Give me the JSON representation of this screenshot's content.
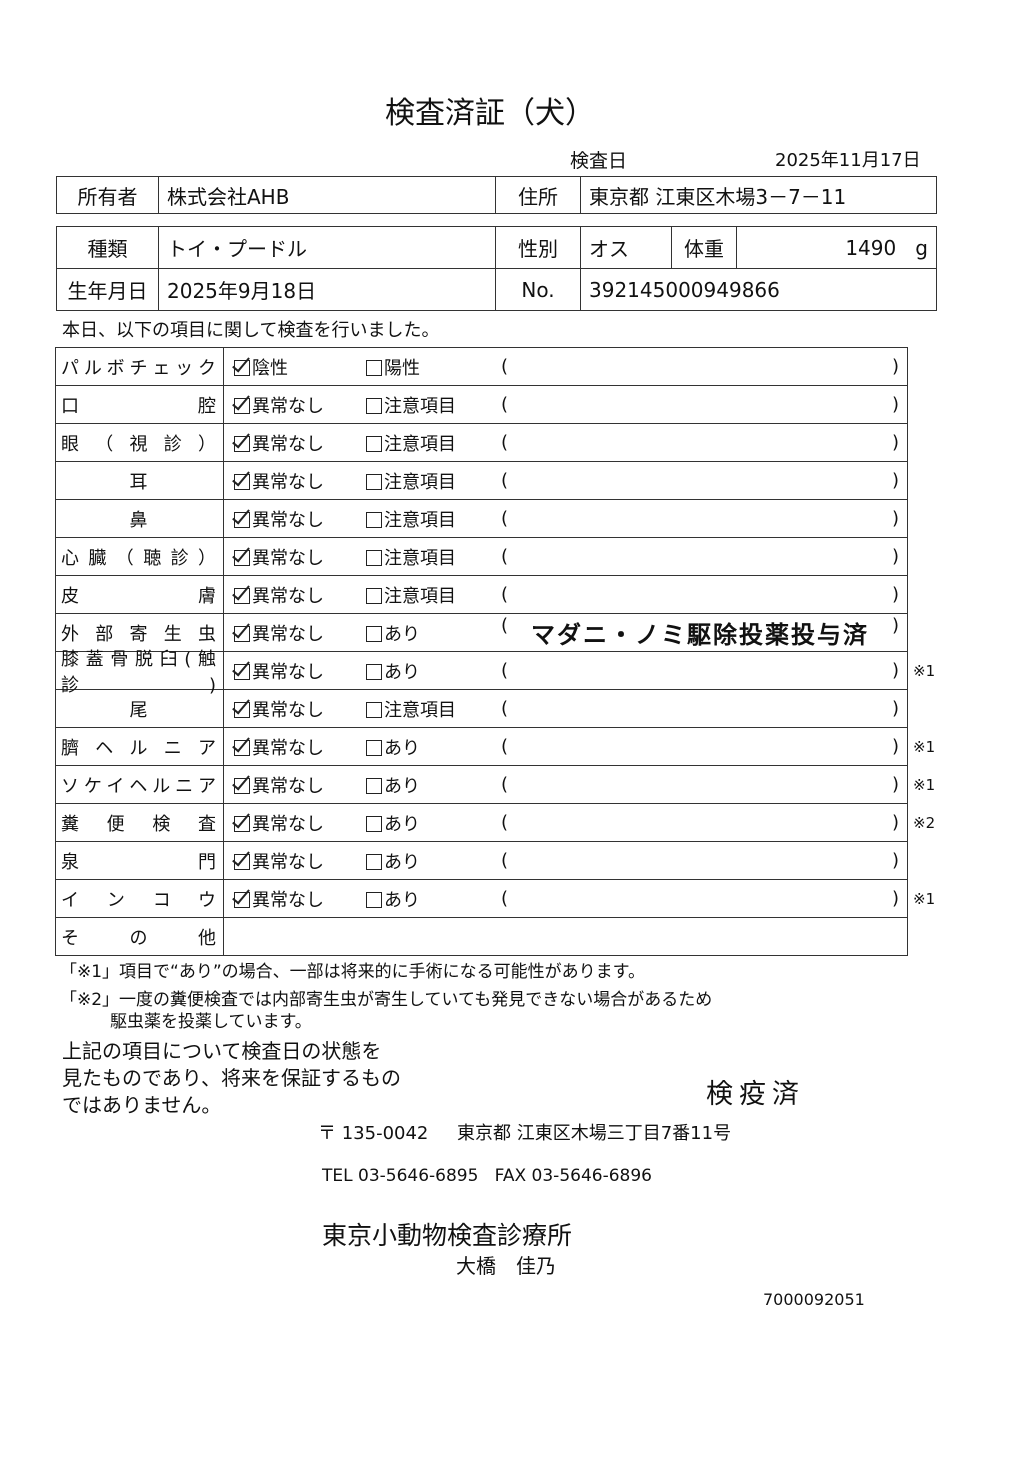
{
  "title": "検査済証（犬）",
  "exam_date_label": "検査日",
  "exam_date": "2025年11月17日",
  "owner": {
    "label": "所有者",
    "value": "株式会社AHB",
    "address_label": "住所",
    "address": "東京都 江東区木場3－7－11"
  },
  "pet": {
    "breed_label": "種類",
    "breed": "トイ・プードル",
    "sex_label": "性別",
    "sex": "オス",
    "weight_label": "体重",
    "weight": "1490",
    "weight_unit": "g",
    "dob_label": "生年月日",
    "dob": "2025年9月18日",
    "no_label": "No.",
    "no": "392145000949866"
  },
  "intro": "本日、以下の項目に関して検査を行いました。",
  "checks": [
    {
      "label": "パルボチェック",
      "opt1": "陰性",
      "opt2": "陽性",
      "note": "",
      "mark": "",
      "checked": 1
    },
    {
      "label": "口腔",
      "opt1": "異常なし",
      "opt2": "注意項目",
      "note": "",
      "mark": "",
      "checked": 1
    },
    {
      "label": "眼（視診）",
      "opt1": "異常なし",
      "opt2": "注意項目",
      "note": "",
      "mark": "",
      "checked": 1
    },
    {
      "label": "耳",
      "opt1": "異常なし",
      "opt2": "注意項目",
      "note": "",
      "mark": "",
      "checked": 1,
      "center": true
    },
    {
      "label": "鼻",
      "opt1": "異常なし",
      "opt2": "注意項目",
      "note": "",
      "mark": "",
      "checked": 1,
      "center": true
    },
    {
      "label": "心臓（聴診）",
      "opt1": "異常なし",
      "opt2": "注意項目",
      "note": "",
      "mark": "",
      "checked": 1
    },
    {
      "label": "皮膚",
      "opt1": "異常なし",
      "opt2": "注意項目",
      "note": "",
      "mark": "",
      "checked": 1
    },
    {
      "label": "外部寄生虫",
      "opt1": "異常なし",
      "opt2": "あり",
      "note": "マダニ・ノミ駆除投薬投与済",
      "mark": "",
      "checked": 1
    },
    {
      "label": "膝蓋骨脱臼(触診)",
      "opt1": "異常なし",
      "opt2": "あり",
      "note": "",
      "mark": "※1",
      "checked": 1
    },
    {
      "label": "尾",
      "opt1": "異常なし",
      "opt2": "注意項目",
      "note": "",
      "mark": "",
      "checked": 1,
      "center": true
    },
    {
      "label": "臍ヘルニア",
      "opt1": "異常なし",
      "opt2": "あり",
      "note": "",
      "mark": "※1",
      "checked": 1
    },
    {
      "label": "ソケイヘルニア",
      "opt1": "異常なし",
      "opt2": "あり",
      "note": "",
      "mark": "※1",
      "checked": 1
    },
    {
      "label": "糞便検査",
      "opt1": "異常なし",
      "opt2": "あり",
      "note": "",
      "mark": "※2",
      "checked": 1
    },
    {
      "label": "泉門",
      "opt1": "異常なし",
      "opt2": "あり",
      "note": "",
      "mark": "",
      "checked": 1
    },
    {
      "label": "インコウ",
      "opt1": "異常なし",
      "opt2": "あり",
      "note": "",
      "mark": "※1",
      "checked": 1
    }
  ],
  "other_label": "その他",
  "footnote1": "「※1」項目で“あり”の場合、一部は将来的に手術になる可能性があります。",
  "footnote2": "「※2」一度の糞便検査では内部寄生虫が寄生していても発見できない場合があるため",
  "footnote2b": "駆虫薬を投薬しています。",
  "disclaimer": [
    "上記の項目について検査日の状態を",
    "見たものであり、将来を保証するもの",
    "ではありません。"
  ],
  "stamp": "検疫済",
  "postal": "〒 135-0042",
  "address": "東京都 江東区木場三丁目7番11号",
  "tel": "TEL 03-5646-6895",
  "fax": "FAX 03-5646-6896",
  "clinic": "東京小動物検査診療所",
  "doctor": "大橋　佳乃",
  "serial": "7000092051"
}
